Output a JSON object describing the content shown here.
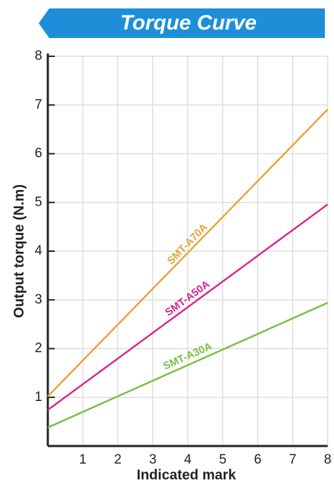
{
  "chart_data": {
    "type": "line",
    "title": "Torque Curve",
    "x_label": "Indicated mark",
    "y_label": "Output torque (N.m)",
    "x": [
      0,
      8
    ],
    "series": [
      {
        "name": "SMT-A70A",
        "color": "#e8a33a",
        "values": [
          1.02,
          6.91
        ]
      },
      {
        "name": "SMT-A50A",
        "color": "#d6288f",
        "values": [
          0.74,
          4.96
        ]
      },
      {
        "name": "SMT-A30A",
        "color": "#77c043",
        "values": [
          0.38,
          2.94
        ]
      }
    ],
    "xlim": [
      0,
      8
    ],
    "xticks": [
      1,
      2,
      3,
      4,
      5,
      6,
      7,
      8
    ],
    "ylim": [
      0,
      8
    ],
    "yticks": [
      1,
      2,
      3,
      4,
      5,
      6,
      7,
      8
    ],
    "grid": true
  }
}
